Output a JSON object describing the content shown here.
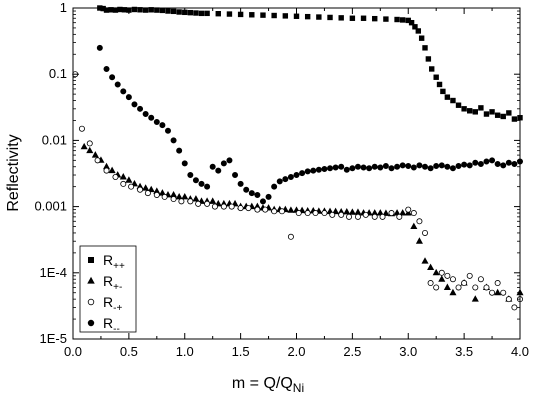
{
  "chart_data": {
    "type": "scatter",
    "title": "",
    "xlabel": {
      "main": "m = Q/Q",
      "sub": "Ni"
    },
    "ylabel": "Reflectivity",
    "xlim": [
      0.0,
      4.0
    ],
    "ylim": [
      1e-05,
      1
    ],
    "yscale": "log",
    "grid": false,
    "legend_position": "bottom-left",
    "x_ticks": [
      "0.0",
      "0.5",
      "1.0",
      "1.5",
      "2.0",
      "2.5",
      "3.0",
      "3.5",
      "4.0"
    ],
    "y_ticks": [
      "1E-5",
      "1E-4",
      "0.001",
      "0.01",
      "0.1",
      "1"
    ],
    "series": [
      {
        "name": "R++",
        "label_main": "R",
        "label_sub": "++",
        "marker": "square",
        "filled": true,
        "x": [
          0.24,
          0.27,
          0.3,
          0.34,
          0.38,
          0.42,
          0.46,
          0.5,
          0.55,
          0.6,
          0.65,
          0.7,
          0.75,
          0.8,
          0.85,
          0.9,
          0.95,
          1.0,
          1.05,
          1.1,
          1.15,
          1.2,
          1.3,
          1.4,
          1.5,
          1.6,
          1.7,
          1.8,
          1.9,
          2.0,
          2.1,
          2.2,
          2.3,
          2.4,
          2.5,
          2.6,
          2.7,
          2.8,
          2.9,
          2.95,
          3.0,
          3.03,
          3.06,
          3.09,
          3.12,
          3.15,
          3.18,
          3.21,
          3.25,
          3.28,
          3.31,
          3.35,
          3.4,
          3.45,
          3.5,
          3.55,
          3.6,
          3.65,
          3.7,
          3.75,
          3.8,
          3.85,
          3.9,
          3.95,
          4.0
        ],
        "y": [
          1.0,
          0.98,
          0.93,
          0.94,
          0.93,
          0.95,
          0.94,
          0.93,
          0.95,
          0.94,
          0.93,
          0.94,
          0.93,
          0.92,
          0.9,
          0.89,
          0.87,
          0.86,
          0.85,
          0.84,
          0.83,
          0.83,
          0.82,
          0.81,
          0.8,
          0.79,
          0.78,
          0.77,
          0.76,
          0.75,
          0.74,
          0.73,
          0.72,
          0.71,
          0.7,
          0.7,
          0.69,
          0.68,
          0.67,
          0.66,
          0.65,
          0.6,
          0.52,
          0.45,
          0.35,
          0.25,
          0.17,
          0.12,
          0.09,
          0.07,
          0.055,
          0.045,
          0.04,
          0.034,
          0.03,
          0.028,
          0.027,
          0.031,
          0.025,
          0.027,
          0.024,
          0.023,
          0.026,
          0.021,
          0.022
        ]
      },
      {
        "name": "R+-",
        "label_main": "R",
        "label_sub": "+-",
        "marker": "triangle",
        "filled": true,
        "x": [
          0.1,
          0.15,
          0.2,
          0.25,
          0.3,
          0.35,
          0.4,
          0.45,
          0.5,
          0.55,
          0.6,
          0.65,
          0.7,
          0.75,
          0.8,
          0.85,
          0.9,
          0.95,
          1.0,
          1.05,
          1.1,
          1.15,
          1.2,
          1.25,
          1.3,
          1.35,
          1.4,
          1.45,
          1.5,
          1.55,
          1.6,
          1.65,
          1.7,
          1.75,
          1.8,
          1.85,
          1.9,
          1.95,
          2.0,
          2.05,
          2.1,
          2.15,
          2.2,
          2.25,
          2.3,
          2.35,
          2.4,
          2.45,
          2.5,
          2.55,
          2.6,
          2.65,
          2.7,
          2.75,
          2.8,
          2.85,
          2.9,
          2.95,
          3.0,
          3.05,
          3.1,
          3.15,
          3.2,
          3.25,
          3.3,
          3.35,
          3.4,
          3.5,
          3.6,
          3.7,
          3.8,
          3.9,
          4.0
        ],
        "y": [
          0.008,
          0.007,
          0.006,
          0.005,
          0.004,
          0.0035,
          0.003,
          0.0028,
          0.0025,
          0.0022,
          0.002,
          0.0019,
          0.0018,
          0.0017,
          0.0016,
          0.0015,
          0.0015,
          0.0014,
          0.0014,
          0.0013,
          0.0013,
          0.0012,
          0.0012,
          0.0012,
          0.0011,
          0.0011,
          0.0011,
          0.0011,
          0.001,
          0.001,
          0.001,
          0.001,
          0.00095,
          0.00095,
          0.0009,
          0.0009,
          0.0009,
          0.00088,
          0.00088,
          0.00087,
          0.00086,
          0.00086,
          0.00085,
          0.00085,
          0.00084,
          0.00084,
          0.00083,
          0.00083,
          0.00082,
          0.00082,
          0.0008,
          0.0008,
          0.0008,
          0.0008,
          0.00079,
          0.00078,
          0.0008,
          0.0008,
          0.0008,
          0.0005,
          0.0003,
          0.00015,
          0.00012,
          0.0001,
          8e-05,
          6e-05,
          5e-05,
          7e-05,
          4e-05,
          6e-05,
          5e-05,
          4e-05,
          5e-05
        ]
      },
      {
        "name": "R-+",
        "label_main": "R",
        "label_sub": "-+",
        "marker": "circle",
        "filled": false,
        "x": [
          0.02,
          0.08,
          0.15,
          0.22,
          0.3,
          0.38,
          0.45,
          0.52,
          0.6,
          0.67,
          0.75,
          0.82,
          0.9,
          0.97,
          1.05,
          1.12,
          1.2,
          1.27,
          1.35,
          1.42,
          1.5,
          1.57,
          1.65,
          1.72,
          1.8,
          1.87,
          1.95,
          2.02,
          2.1,
          2.17,
          2.25,
          2.32,
          2.4,
          2.47,
          2.55,
          2.62,
          2.7,
          2.77,
          2.85,
          2.92,
          3.0,
          3.05,
          3.1,
          3.15,
          3.2,
          3.25,
          3.3,
          3.35,
          3.4,
          3.45,
          3.5,
          3.55,
          3.6,
          3.65,
          3.7,
          3.75,
          3.8,
          3.85,
          3.9,
          3.95,
          4.0
        ],
        "y": [
          0.1,
          0.015,
          0.009,
          0.005,
          0.0035,
          0.0028,
          0.0022,
          0.002,
          0.0018,
          0.0016,
          0.0015,
          0.0014,
          0.0013,
          0.0012,
          0.0012,
          0.0011,
          0.0011,
          0.001,
          0.001,
          0.001,
          0.00095,
          0.00095,
          0.0009,
          0.0009,
          0.00085,
          0.00085,
          0.00035,
          0.0008,
          0.0008,
          0.0008,
          0.0008,
          0.00075,
          0.00075,
          0.0007,
          0.0007,
          0.00075,
          0.0007,
          0.0007,
          0.0008,
          0.0007,
          0.0009,
          0.0008,
          0.0006,
          0.0004,
          7e-05,
          6e-05,
          0.0001,
          9e-05,
          8e-05,
          6e-05,
          7e-05,
          9e-05,
          6e-05,
          8e-05,
          6e-05,
          5e-05,
          7e-05,
          5e-05,
          4e-05,
          3e-05,
          4e-05
        ]
      },
      {
        "name": "R--",
        "label_main": "R",
        "label_sub": "--",
        "marker": "circle",
        "filled": true,
        "x": [
          0.24,
          0.3,
          0.35,
          0.4,
          0.45,
          0.5,
          0.55,
          0.6,
          0.65,
          0.7,
          0.75,
          0.8,
          0.85,
          0.9,
          0.95,
          1.0,
          1.05,
          1.1,
          1.15,
          1.2,
          1.25,
          1.3,
          1.35,
          1.4,
          1.45,
          1.5,
          1.55,
          1.6,
          1.65,
          1.7,
          1.75,
          1.8,
          1.85,
          1.9,
          1.95,
          2.0,
          2.05,
          2.1,
          2.15,
          2.2,
          2.25,
          2.3,
          2.35,
          2.4,
          2.45,
          2.5,
          2.55,
          2.6,
          2.65,
          2.7,
          2.75,
          2.8,
          2.85,
          2.9,
          2.95,
          3.0,
          3.05,
          3.1,
          3.15,
          3.2,
          3.25,
          3.3,
          3.35,
          3.4,
          3.45,
          3.5,
          3.55,
          3.6,
          3.65,
          3.7,
          3.75,
          3.8,
          3.85,
          3.9,
          3.95,
          4.0
        ],
        "y": [
          0.25,
          0.12,
          0.09,
          0.07,
          0.055,
          0.045,
          0.035,
          0.03,
          0.025,
          0.022,
          0.019,
          0.017,
          0.014,
          0.01,
          0.007,
          0.0045,
          0.003,
          0.0025,
          0.0022,
          0.002,
          0.004,
          0.0035,
          0.0045,
          0.005,
          0.003,
          0.0022,
          0.0018,
          0.0016,
          0.0015,
          0.0012,
          0.0014,
          0.002,
          0.0024,
          0.0026,
          0.0028,
          0.003,
          0.0032,
          0.0034,
          0.0035,
          0.0036,
          0.0037,
          0.0038,
          0.0039,
          0.004,
          0.0036,
          0.0038,
          0.004,
          0.0039,
          0.0038,
          0.004,
          0.0039,
          0.0041,
          0.0038,
          0.004,
          0.0042,
          0.0041,
          0.0039,
          0.0042,
          0.004,
          0.0038,
          0.0041,
          0.0042,
          0.004,
          0.0038,
          0.0041,
          0.0043,
          0.0042,
          0.0046,
          0.0044,
          0.0048,
          0.005,
          0.0044,
          0.0042,
          0.0046,
          0.0044,
          0.0048
        ]
      }
    ]
  }
}
